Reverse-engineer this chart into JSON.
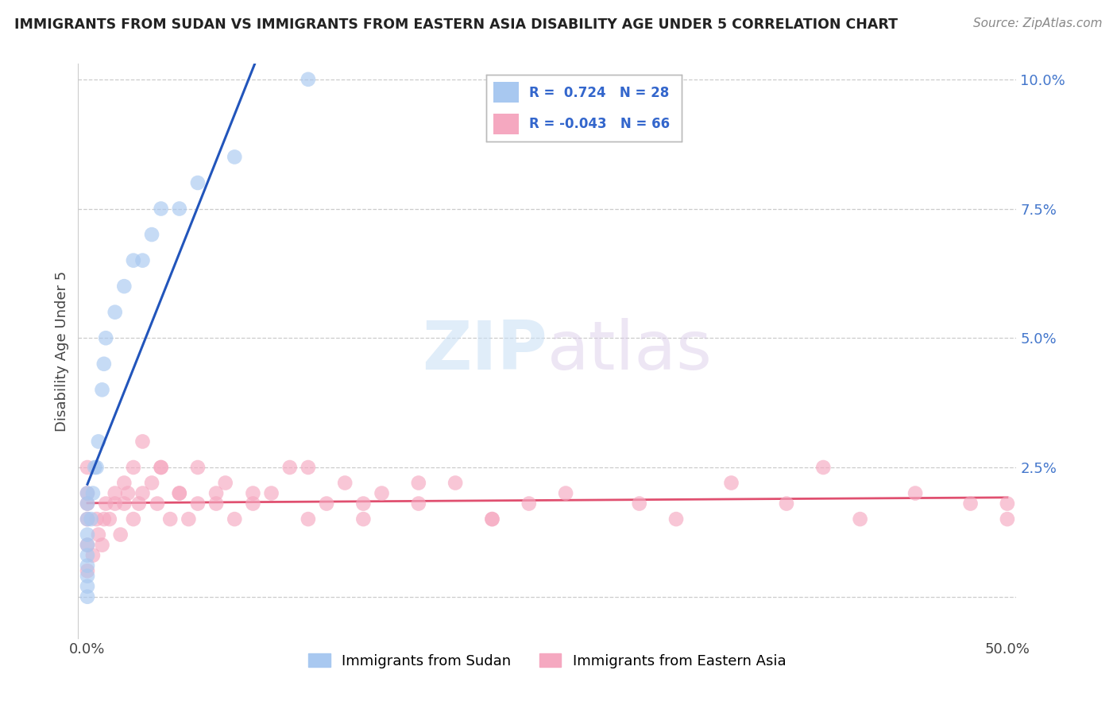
{
  "title": "IMMIGRANTS FROM SUDAN VS IMMIGRANTS FROM EASTERN ASIA DISABILITY AGE UNDER 5 CORRELATION CHART",
  "source": "Source: ZipAtlas.com",
  "ylabel_label": "Disability Age Under 5",
  "legend_labels": [
    "Immigrants from Sudan",
    "Immigrants from Eastern Asia"
  ],
  "r_sudan": 0.724,
  "n_sudan": 28,
  "r_eastern_asia": -0.043,
  "n_eastern_asia": 66,
  "color_sudan": "#a8c8f0",
  "color_eastern_asia": "#f5a8c0",
  "line_color_sudan": "#2255bb",
  "line_color_eastern_asia": "#e05070",
  "watermark_zip": "ZIP",
  "watermark_atlas": "atlas",
  "sudan_x": [
    0.0,
    0.0,
    0.0,
    0.0,
    0.0,
    0.0,
    0.0,
    0.0,
    0.0,
    0.0,
    0.002,
    0.003,
    0.004,
    0.005,
    0.006,
    0.008,
    0.009,
    0.01,
    0.015,
    0.02,
    0.025,
    0.03,
    0.035,
    0.04,
    0.05,
    0.06,
    0.08,
    0.12
  ],
  "sudan_y": [
    0.0,
    0.002,
    0.004,
    0.006,
    0.008,
    0.01,
    0.012,
    0.015,
    0.018,
    0.02,
    0.015,
    0.02,
    0.025,
    0.025,
    0.03,
    0.04,
    0.045,
    0.05,
    0.055,
    0.06,
    0.065,
    0.065,
    0.07,
    0.075,
    0.075,
    0.08,
    0.085,
    0.1
  ],
  "eastern_asia_x": [
    0.0,
    0.0,
    0.0,
    0.0,
    0.0,
    0.0,
    0.005,
    0.008,
    0.01,
    0.012,
    0.015,
    0.018,
    0.02,
    0.022,
    0.025,
    0.028,
    0.03,
    0.035,
    0.038,
    0.04,
    0.045,
    0.05,
    0.055,
    0.06,
    0.07,
    0.075,
    0.08,
    0.09,
    0.1,
    0.11,
    0.12,
    0.13,
    0.14,
    0.15,
    0.16,
    0.18,
    0.2,
    0.22,
    0.24,
    0.003,
    0.006,
    0.009,
    0.015,
    0.02,
    0.025,
    0.03,
    0.04,
    0.05,
    0.06,
    0.07,
    0.09,
    0.12,
    0.15,
    0.18,
    0.22,
    0.26,
    0.3,
    0.32,
    0.35,
    0.38,
    0.4,
    0.42,
    0.45,
    0.48,
    0.5,
    0.5
  ],
  "eastern_asia_y": [
    0.005,
    0.01,
    0.015,
    0.018,
    0.02,
    0.025,
    0.015,
    0.01,
    0.018,
    0.015,
    0.02,
    0.012,
    0.018,
    0.02,
    0.015,
    0.018,
    0.02,
    0.022,
    0.018,
    0.025,
    0.015,
    0.02,
    0.015,
    0.018,
    0.02,
    0.022,
    0.015,
    0.018,
    0.02,
    0.025,
    0.015,
    0.018,
    0.022,
    0.015,
    0.02,
    0.018,
    0.022,
    0.015,
    0.018,
    0.008,
    0.012,
    0.015,
    0.018,
    0.022,
    0.025,
    0.03,
    0.025,
    0.02,
    0.025,
    0.018,
    0.02,
    0.025,
    0.018,
    0.022,
    0.015,
    0.02,
    0.018,
    0.015,
    0.022,
    0.018,
    0.025,
    0.015,
    0.02,
    0.018,
    0.015,
    0.018
  ],
  "xlim": [
    -0.005,
    0.505
  ],
  "ylim": [
    -0.008,
    0.103
  ],
  "yticks": [
    0.0,
    0.025,
    0.05,
    0.075,
    0.1
  ],
  "ytick_labels": [
    "",
    "2.5%",
    "5.0%",
    "7.5%",
    "10.0%"
  ],
  "xtick_labels": [
    "0.0%",
    "50.0%"
  ],
  "xticks": [
    0.0,
    0.5
  ]
}
